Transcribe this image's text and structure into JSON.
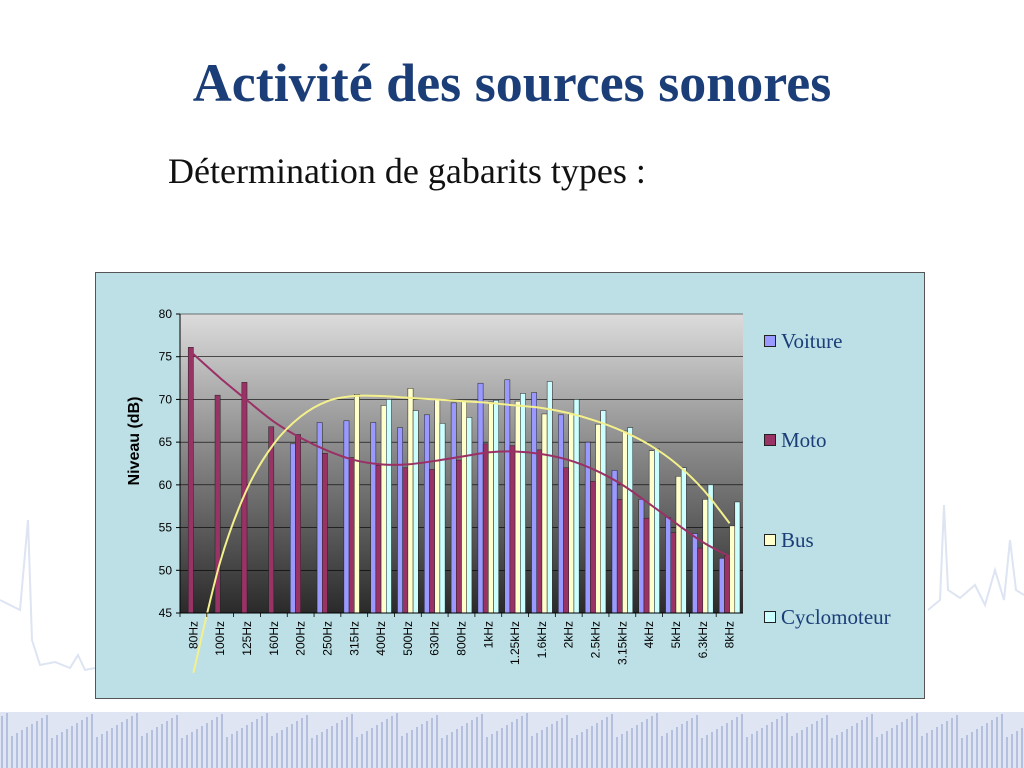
{
  "slide": {
    "title": "Activité des sources sonores",
    "subtitle": "Détermination de gabarits types :"
  },
  "colors": {
    "title": "#1b3e78",
    "frame_bg": "#bde0e6",
    "voiture": "#9999ff",
    "moto": "#993366",
    "bus": "#ffffcc",
    "cyclomoteur": "#ccffff",
    "trend_moto": "#9a3065",
    "trend_bus": "#f4f08c"
  },
  "chart_data": {
    "type": "bar",
    "ylabel": "Niveau (dB)",
    "xlabel": "",
    "ylim": [
      45,
      80
    ],
    "yticks": [
      45,
      50,
      55,
      60,
      65,
      70,
      75,
      80
    ],
    "grid": true,
    "legend_position": "right",
    "categories": [
      "80Hz",
      "100Hz",
      "125Hz",
      "160Hz",
      "200Hz",
      "250Hz",
      "315Hz",
      "400Hz",
      "500Hz",
      "630Hz",
      "800Hz",
      "1kHz",
      "1.25kHz",
      "1.6kHz",
      "2kHz",
      "2.5kHz",
      "3.15kHz",
      "4kHz",
      "5kHz",
      "6.3kHz",
      "8kHz"
    ],
    "series": [
      {
        "name": "Voiture",
        "values": [
          null,
          null,
          null,
          null,
          64.8,
          67.3,
          67.5,
          67.3,
          66.7,
          68.2,
          69.6,
          71.9,
          72.3,
          70.8,
          68.2,
          65.0,
          61.7,
          58.3,
          56.2,
          54.3,
          51.4
        ]
      },
      {
        "name": "Moto",
        "values": [
          76.1,
          70.5,
          72.0,
          66.8,
          65.9,
          63.7,
          63.2,
          62.3,
          62.0,
          61.8,
          62.9,
          64.8,
          64.6,
          64.1,
          62.0,
          60.4,
          58.3,
          56.1,
          54.4,
          52.6,
          51.7
        ]
      },
      {
        "name": "Bus",
        "values": [
          null,
          null,
          null,
          null,
          null,
          null,
          70.6,
          69.3,
          71.3,
          70.0,
          69.8,
          69.7,
          69.8,
          68.3,
          68.3,
          67.1,
          66.3,
          64.0,
          61.0,
          58.3,
          55.2
        ]
      },
      {
        "name": "Cyclomoteur",
        "values": [
          null,
          null,
          null,
          null,
          null,
          null,
          null,
          70.0,
          68.7,
          67.2,
          67.9,
          69.9,
          70.7,
          72.1,
          70.0,
          68.7,
          66.7,
          64.2,
          62.0,
          60.0,
          58.0
        ]
      }
    ],
    "trendlines": [
      {
        "series": "Moto",
        "values": [
          75.3,
          72.5,
          69.9,
          67.4,
          65.5,
          64.0,
          62.9,
          62.4,
          62.4,
          62.8,
          63.3,
          63.8,
          63.9,
          63.6,
          62.9,
          61.7,
          60.0,
          57.8,
          55.5,
          53.3,
          51.6
        ]
      },
      {
        "series": "Bus",
        "values": [
          38.0,
          51.0,
          59.5,
          64.8,
          68.0,
          69.8,
          70.4,
          70.4,
          70.2,
          70.0,
          69.8,
          69.6,
          69.3,
          69.0,
          68.4,
          67.5,
          66.3,
          64.7,
          62.5,
          59.5,
          55.5
        ]
      }
    ]
  }
}
